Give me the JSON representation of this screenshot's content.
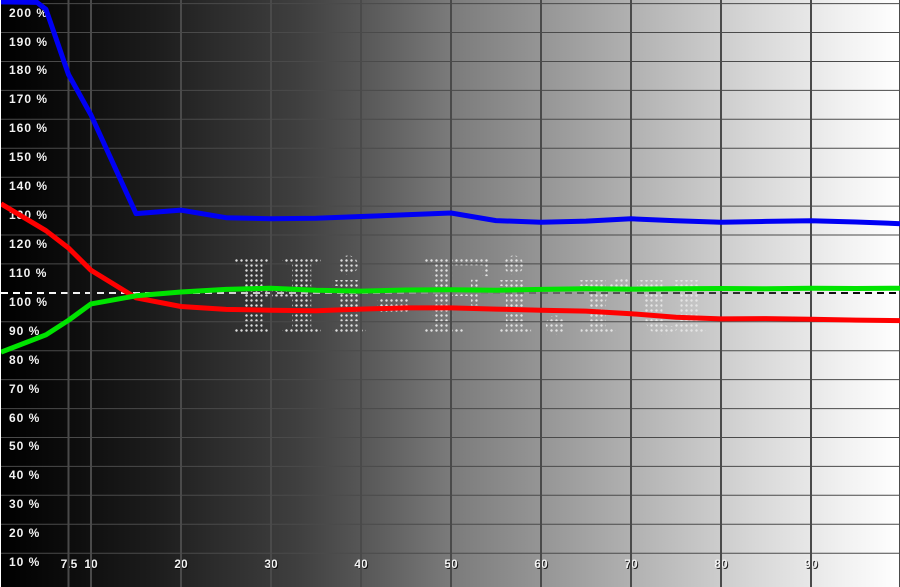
{
  "watermark": {
    "text": "Hi-Fi.ru"
  },
  "chart_data": {
    "type": "line",
    "title": "",
    "background": {
      "left_color": "#000000",
      "right_color": "#ffffff",
      "direction": "left-to-right"
    },
    "grid": {
      "visible": true,
      "color": "#4a4a4a"
    },
    "label_color": "#f2f2f2",
    "x_axis": {
      "range": [
        0,
        100
      ],
      "values": [
        7.5,
        10,
        20,
        30,
        40,
        50,
        60,
        70,
        80,
        90
      ],
      "labels": [
        "7.5",
        "10",
        "20",
        "30",
        "40",
        "50",
        "60",
        "70",
        "80",
        "90"
      ]
    },
    "y_axis": {
      "range": [
        10,
        200
      ],
      "unit": "%",
      "values": [
        200,
        190,
        180,
        170,
        160,
        150,
        140,
        130,
        120,
        110,
        100,
        90,
        80,
        70,
        60,
        50,
        40,
        30,
        20,
        10
      ],
      "labels": [
        "200 %",
        "190 %",
        "180 %",
        "170 %",
        "160 %",
        "150 %",
        "140 %",
        "130 %",
        "120 %",
        "110 %",
        "100 %",
        "90 %",
        "80 %",
        "70 %",
        "60 %",
        "50 %",
        "40 %",
        "30 %",
        "20 %",
        "10 %"
      ]
    },
    "reference_line": {
      "value": 100,
      "style": "dashed",
      "color": "#ffffff"
    },
    "series": [
      {
        "name": "red",
        "color": "#ff0000",
        "points": [
          [
            0,
            130.8
          ],
          [
            5,
            121.5
          ],
          [
            7.5,
            115.5
          ],
          [
            10,
            107.8
          ],
          [
            15,
            98.3
          ],
          [
            20,
            95.3
          ],
          [
            25,
            94.3
          ],
          [
            30,
            94.0
          ],
          [
            35,
            93.8
          ],
          [
            40,
            94.4
          ],
          [
            45,
            94.8
          ],
          [
            50,
            94.8
          ],
          [
            55,
            94.4
          ],
          [
            60,
            94.0
          ],
          [
            65,
            93.7
          ],
          [
            70,
            92.8
          ],
          [
            75,
            91.6
          ],
          [
            80,
            91.0
          ],
          [
            85,
            91.1
          ],
          [
            90,
            90.9
          ],
          [
            95,
            90.6
          ],
          [
            100,
            90.4
          ]
        ]
      },
      {
        "name": "green",
        "color": "#00e400",
        "points": [
          [
            0,
            79.5
          ],
          [
            5,
            85.5
          ],
          [
            7.5,
            90.5
          ],
          [
            10,
            96.2
          ],
          [
            15,
            99.0
          ],
          [
            20,
            100.3
          ],
          [
            25,
            101.2
          ],
          [
            30,
            101.6
          ],
          [
            35,
            100.9
          ],
          [
            40,
            100.6
          ],
          [
            45,
            101.0
          ],
          [
            50,
            101.1
          ],
          [
            55,
            100.9
          ],
          [
            60,
            101.2
          ],
          [
            65,
            101.4
          ],
          [
            70,
            101.3
          ],
          [
            75,
            101.4
          ],
          [
            80,
            101.5
          ],
          [
            85,
            101.4
          ],
          [
            90,
            101.6
          ],
          [
            95,
            101.5
          ],
          [
            100,
            101.6
          ]
        ]
      },
      {
        "name": "blue",
        "color": "#0000f4",
        "points": [
          [
            0,
            200.6
          ],
          [
            4,
            200.4
          ],
          [
            5,
            198.0
          ],
          [
            7.5,
            175.5
          ],
          [
            10,
            161.5
          ],
          [
            15,
            127.4
          ],
          [
            20,
            128.6
          ],
          [
            25,
            126.0
          ],
          [
            30,
            125.6
          ],
          [
            35,
            125.8
          ],
          [
            40,
            126.4
          ],
          [
            45,
            127.0
          ],
          [
            50,
            127.6
          ],
          [
            55,
            125.0
          ],
          [
            60,
            124.4
          ],
          [
            65,
            124.8
          ],
          [
            70,
            125.6
          ],
          [
            75,
            124.9
          ],
          [
            80,
            124.4
          ],
          [
            85,
            124.7
          ],
          [
            90,
            124.9
          ],
          [
            95,
            124.5
          ],
          [
            100,
            123.9
          ]
        ]
      }
    ]
  }
}
